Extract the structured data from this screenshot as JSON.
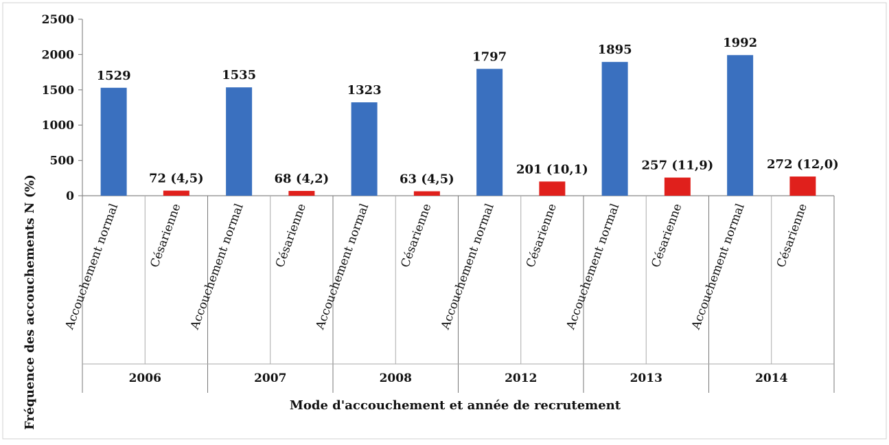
{
  "chart_data": {
    "type": "bar",
    "xlabel": "Mode d'accouchement et année de recrutement",
    "ylabel": "Fréquence des accouchements N (%)",
    "ylim": [
      0,
      2500
    ],
    "yticks": [
      "0",
      "500",
      "1000",
      "1500",
      "2000",
      "2500"
    ],
    "ytick_values": [
      0,
      500,
      1000,
      1500,
      2000,
      2500
    ],
    "grid": false,
    "legend": "none",
    "groups": [
      {
        "year": "2006",
        "bars": [
          {
            "category": "Accouchement normal",
            "value": 1529,
            "label": "1529",
            "color": "#3a70bf"
          },
          {
            "category": "Césarienne",
            "value": 72,
            "label": "72 (4,5)",
            "color": "#e0201c"
          }
        ]
      },
      {
        "year": "2007",
        "bars": [
          {
            "category": "Accouchement normal",
            "value": 1535,
            "label": "1535",
            "color": "#3a70bf"
          },
          {
            "category": "Césarienne",
            "value": 68,
            "label": "68 (4,2)",
            "color": "#e0201c"
          }
        ]
      },
      {
        "year": "2008",
        "bars": [
          {
            "category": "Accouchement normal",
            "value": 1323,
            "label": "1323",
            "color": "#3a70bf"
          },
          {
            "category": "Césarienne",
            "value": 63,
            "label": "63 (4,5)",
            "color": "#e0201c"
          }
        ]
      },
      {
        "year": "2012",
        "bars": [
          {
            "category": "Accouchement normal",
            "value": 1797,
            "label": "1797",
            "color": "#3a70bf"
          },
          {
            "category": "Césarienne",
            "value": 201,
            "label": "201 (10,1)",
            "color": "#e0201c"
          }
        ]
      },
      {
        "year": "2013",
        "bars": [
          {
            "category": "Accouchement normal",
            "value": 1895,
            "label": "1895",
            "color": "#3a70bf"
          },
          {
            "category": "Césarienne",
            "value": 257,
            "label": "257 (11,9)",
            "color": "#e0201c"
          }
        ]
      },
      {
        "year": "2014",
        "bars": [
          {
            "category": "Accouchement normal",
            "value": 1992,
            "label": "1992",
            "color": "#3a70bf"
          },
          {
            "category": "Césarienne",
            "value": 272,
            "label": "272 (12,0)",
            "color": "#e0201c"
          }
        ]
      }
    ]
  }
}
